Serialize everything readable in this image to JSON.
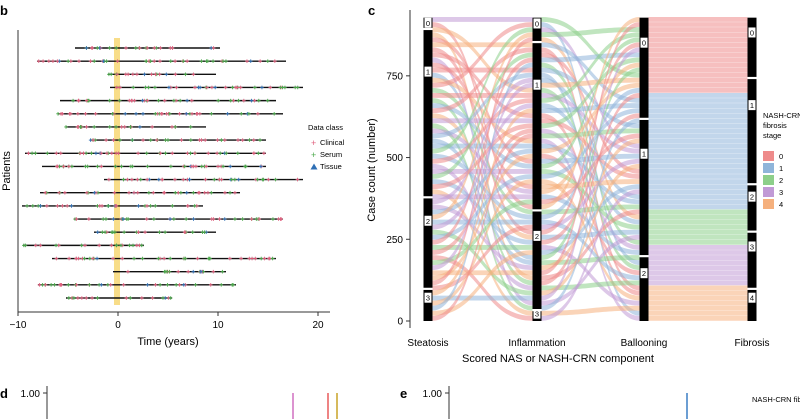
{
  "panels": {
    "b": "b",
    "c": "c",
    "d": "d",
    "e": "e"
  },
  "chart_data": [
    {
      "panel": "b",
      "type": "scatter",
      "xlabel": "Time (years)",
      "ylabel": "Patients",
      "xlim": [
        -10,
        20
      ],
      "x_ticks": [
        -10,
        0,
        10,
        20
      ],
      "highlight_x": 0,
      "legend": {
        "title": "Data class",
        "placement": "right",
        "entries": [
          {
            "label": "Clinical",
            "marker": "+",
            "color": "#e0607e"
          },
          {
            "label": "Serum",
            "marker": "+",
            "color": "#4aa84a"
          },
          {
            "label": "Tissue",
            "marker": "triangle",
            "color": "#2f6fb5"
          }
        ]
      },
      "patients": [
        {
          "start": -4.3,
          "end": 10.2
        },
        {
          "start": -8.1,
          "end": 16.8
        },
        {
          "start": -1.0,
          "end": 9.8
        },
        {
          "start": -0.8,
          "end": 18.5
        },
        {
          "start": -5.8,
          "end": 15.8
        },
        {
          "start": -6.0,
          "end": 16.5
        },
        {
          "start": -5.2,
          "end": 8.8
        },
        {
          "start": -2.8,
          "end": 14.8
        },
        {
          "start": -9.3,
          "end": 14.8
        },
        {
          "start": -7.6,
          "end": 14.8
        },
        {
          "start": -1.4,
          "end": 18.5
        },
        {
          "start": -7.8,
          "end": 12.2
        },
        {
          "start": -9.6,
          "end": 8.5
        },
        {
          "start": -4.4,
          "end": 16.5
        },
        {
          "start": -2.4,
          "end": 9.8
        },
        {
          "start": -9.5,
          "end": 2.6
        },
        {
          "start": -6.6,
          "end": 15.8
        },
        {
          "start": -0.5,
          "end": 10.8
        },
        {
          "start": -8.0,
          "end": 11.8
        },
        {
          "start": -5.2,
          "end": 5.4
        }
      ]
    },
    {
      "panel": "c",
      "type": "sankey",
      "xlabel": "Scored NAS or NASH-CRN component",
      "ylabel": "Case count (number)",
      "ylim": [
        0,
        930
      ],
      "y_ticks": [
        0,
        250,
        500,
        750
      ],
      "axes": [
        {
          "name": "Steatosis",
          "levels": [
            {
              "label": "3",
              "count": 95
            },
            {
              "label": "2",
              "count": 280
            },
            {
              "label": "1",
              "count": 515
            },
            {
              "label": "0",
              "count": 38
            }
          ]
        },
        {
          "name": "Inflammation",
          "levels": [
            {
              "label": "3",
              "count": 30
            },
            {
              "label": "2",
              "count": 305
            },
            {
              "label": "1",
              "count": 515
            },
            {
              "label": "0",
              "count": 78
            }
          ]
        },
        {
          "name": "Ballooning",
          "levels": [
            {
              "label": "2",
              "count": 195
            },
            {
              "label": "1",
              "count": 420
            },
            {
              "label": "0",
              "count": 313
            }
          ]
        },
        {
          "name": "Fibrosis",
          "levels": [
            {
              "label": "4",
              "count": 95
            },
            {
              "label": "3",
              "count": 175
            },
            {
              "label": "2",
              "count": 145
            },
            {
              "label": "1",
              "count": 325
            },
            {
              "label": "0",
              "count": 188
            }
          ]
        }
      ],
      "legend": {
        "title": [
          "NASH-CRN",
          "fibrosis",
          "stage"
        ],
        "entries": [
          {
            "label": "0",
            "color": "#ee8b8b"
          },
          {
            "label": "1",
            "color": "#8fb5da"
          },
          {
            "label": "2",
            "color": "#8dcf8a"
          },
          {
            "label": "3",
            "color": "#c19ad6"
          },
          {
            "label": "4",
            "color": "#f5b07d"
          }
        ]
      }
    },
    {
      "panel": "d",
      "type": "line",
      "y_ticks": [
        1.0
      ],
      "y_tick_labels": [
        "1.00"
      ],
      "series_colors": [
        "#d06fc0",
        "#e85a5a",
        "#c9a227"
      ]
    },
    {
      "panel": "e",
      "type": "line",
      "y_ticks": [
        1.0
      ],
      "y_tick_labels": [
        "1.00"
      ],
      "legend_title": "NASH-CRN fibrosis stage",
      "series_colors": [
        "#3b7dc4"
      ]
    }
  ]
}
